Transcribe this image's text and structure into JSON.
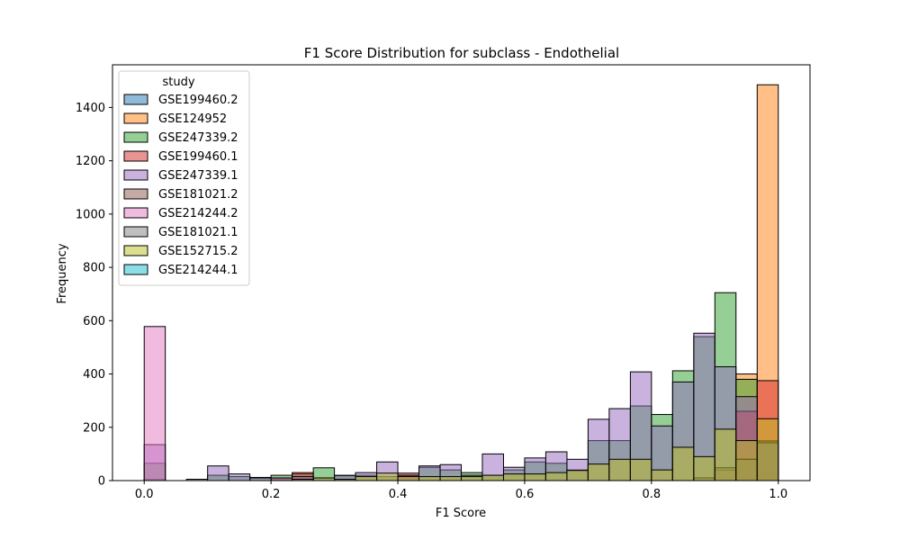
{
  "chart_data": {
    "type": "bar",
    "subtype": "overlaid-histogram",
    "title": "F1 Score Distribution for subclass - Endothelial",
    "xlabel": "F1 Score",
    "ylabel": "Frequency",
    "xlim": [
      -0.05,
      1.05
    ],
    "ylim": [
      0,
      1560
    ],
    "xticks": [
      "0.0",
      "0.2",
      "0.4",
      "0.6",
      "0.8",
      "1.0"
    ],
    "yticks": [
      "0",
      "200",
      "400",
      "600",
      "800",
      "1000",
      "1200",
      "1400"
    ],
    "grid": false,
    "legend": {
      "title": "study",
      "placement": "top-left"
    },
    "bin_edges": [
      0.0,
      0.0333,
      0.0667,
      0.1,
      0.1333,
      0.1667,
      0.2,
      0.2333,
      0.2667,
      0.3,
      0.3333,
      0.3667,
      0.4,
      0.4333,
      0.4667,
      0.5,
      0.5333,
      0.5667,
      0.6,
      0.6333,
      0.6667,
      0.7,
      0.7333,
      0.7667,
      0.8,
      0.8333,
      0.8667,
      0.9,
      0.9333,
      0.9667,
      1.0
    ],
    "series": [
      {
        "name": "GSE199460.2",
        "color": "#1f77b4",
        "values": [
          5,
          0,
          0,
          0,
          0,
          0,
          0,
          0,
          0,
          0,
          0,
          0,
          0,
          0,
          0,
          0,
          0,
          0,
          0,
          0,
          0,
          0,
          0,
          0,
          0,
          0,
          0,
          0,
          0,
          30
        ]
      },
      {
        "name": "GSE124952",
        "color": "#ff7f0e",
        "values": [
          0,
          0,
          0,
          0,
          0,
          0,
          0,
          0,
          0,
          0,
          0,
          0,
          0,
          0,
          0,
          0,
          0,
          0,
          0,
          0,
          0,
          0,
          0,
          0,
          0,
          0,
          0,
          0,
          400,
          1485
        ]
      },
      {
        "name": "GSE247339.2",
        "color": "#2ca02c",
        "values": [
          65,
          0,
          0,
          20,
          15,
          12,
          20,
          25,
          48,
          18,
          20,
          15,
          20,
          50,
          40,
          30,
          20,
          40,
          70,
          65,
          40,
          150,
          150,
          280,
          248,
          412,
          540,
          705,
          380,
          150
        ]
      },
      {
        "name": "GSE199460.1",
        "color": "#d62728",
        "values": [
          0,
          0,
          0,
          0,
          0,
          0,
          10,
          30,
          0,
          0,
          0,
          0,
          28,
          0,
          0,
          0,
          0,
          0,
          0,
          0,
          0,
          0,
          0,
          0,
          0,
          0,
          0,
          0,
          260,
          375
        ]
      },
      {
        "name": "GSE247339.1",
        "color": "#9467bd",
        "values": [
          135,
          0,
          5,
          55,
          25,
          10,
          10,
          15,
          10,
          20,
          30,
          70,
          20,
          55,
          60,
          20,
          100,
          50,
          85,
          108,
          80,
          230,
          270,
          408,
          205,
          370,
          553,
          427,
          315,
          140
        ]
      },
      {
        "name": "GSE181021.2",
        "color": "#8c564b",
        "values": [
          0,
          0,
          0,
          0,
          0,
          0,
          0,
          0,
          0,
          0,
          0,
          0,
          0,
          0,
          0,
          0,
          0,
          0,
          0,
          0,
          0,
          0,
          0,
          0,
          0,
          0,
          0,
          40,
          80,
          140
        ]
      },
      {
        "name": "GSE214244.2",
        "color": "#e377c2",
        "values": [
          578,
          0,
          0,
          0,
          0,
          0,
          0,
          0,
          0,
          0,
          0,
          0,
          0,
          0,
          0,
          0,
          0,
          0,
          0,
          0,
          0,
          0,
          0,
          0,
          0,
          0,
          0,
          0,
          0,
          0
        ]
      },
      {
        "name": "GSE181021.1",
        "color": "#7f7f7f",
        "values": [
          0,
          0,
          0,
          0,
          0,
          0,
          0,
          0,
          0,
          0,
          0,
          0,
          0,
          0,
          0,
          0,
          0,
          0,
          0,
          0,
          0,
          0,
          0,
          0,
          0,
          0,
          10,
          48,
          80,
          145
        ]
      },
      {
        "name": "GSE152715.2",
        "color": "#bcbd22",
        "values": [
          0,
          0,
          0,
          0,
          0,
          0,
          0,
          5,
          10,
          5,
          15,
          28,
          15,
          15,
          15,
          15,
          20,
          25,
          25,
          30,
          38,
          62,
          80,
          80,
          40,
          125,
          90,
          193,
          150,
          232
        ]
      },
      {
        "name": "GSE214244.1",
        "color": "#17becf",
        "values": [
          0,
          0,
          0,
          0,
          0,
          0,
          0,
          0,
          0,
          0,
          0,
          0,
          0,
          0,
          0,
          0,
          0,
          0,
          0,
          0,
          0,
          0,
          0,
          0,
          0,
          0,
          0,
          0,
          0,
          0
        ]
      }
    ]
  }
}
